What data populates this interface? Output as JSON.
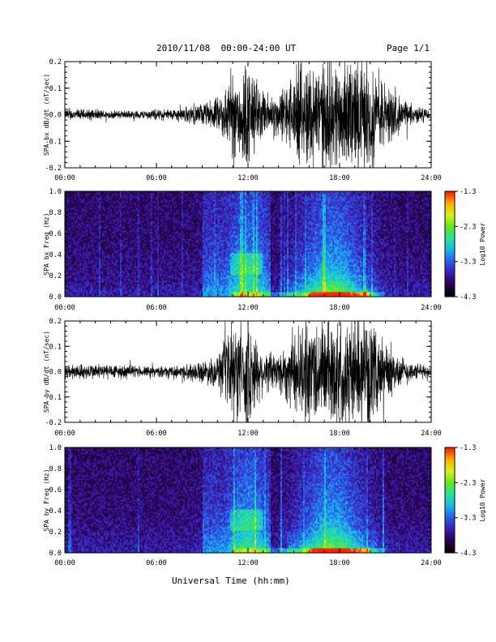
{
  "header": {
    "title": "2010/11/08  00:00-24:00 UT",
    "page": "Page 1/1"
  },
  "footer": {
    "xlabel": "Universal Time (hh:mm)"
  },
  "colors": {
    "trace": "#000000",
    "colormap": [
      "#000000",
      "#2a0050",
      "#3a1fb0",
      "#2b5ce8",
      "#1bb6f0",
      "#25e0a0",
      "#5ee820",
      "#d8f020",
      "#ffb000",
      "#ff2000"
    ]
  },
  "chart_data": [
    {
      "type": "line",
      "ylabel": "SPA bx dB/dt (nT/sec)",
      "x_ticks": [
        "00:00",
        "06:00",
        "12:00",
        "18:00",
        "24:00"
      ],
      "xlim": [
        "00:00",
        "24:00"
      ],
      "ylim": [
        -0.2,
        0.2
      ],
      "y_ticks": [
        "0.2",
        "0.1",
        "0.0",
        "-0.1",
        "-0.2"
      ],
      "series": [
        {
          "hours": [
            0,
            1,
            2,
            3,
            4,
            5,
            6,
            7,
            8,
            9,
            10,
            11,
            12,
            13,
            14,
            15,
            16,
            17,
            18,
            19,
            20,
            21,
            22,
            23,
            24
          ],
          "amplitude": [
            0.02,
            0.02,
            0.02,
            0.015,
            0.015,
            0.015,
            0.02,
            0.02,
            0.03,
            0.04,
            0.06,
            0.15,
            0.2,
            0.08,
            0.08,
            0.15,
            0.2,
            0.2,
            0.2,
            0.2,
            0.18,
            0.12,
            0.06,
            0.03,
            0.02
          ]
        }
      ]
    },
    {
      "type": "heatmap",
      "ylabel": "SPA bx Freq (Hz)",
      "x_ticks": [
        "00:00",
        "06:00",
        "12:00",
        "18:00",
        "24:00"
      ],
      "xlim": [
        "00:00",
        "24:00"
      ],
      "ylim": [
        0.0,
        1.0
      ],
      "y_ticks": [
        "1.0",
        "0.8",
        "0.6",
        "0.4",
        "0.2",
        "0.0"
      ],
      "colorbar": {
        "label": "Log10 Power",
        "min": -4.3,
        "max": -1.3,
        "ticks": [
          "-1.3",
          "-2.3",
          "-3.3",
          "-4.3"
        ]
      }
    },
    {
      "type": "line",
      "ylabel": "SPA by dB/dt (nT/sec)",
      "x_ticks": [
        "00:00",
        "06:00",
        "12:00",
        "18:00",
        "24:00"
      ],
      "xlim": [
        "00:00",
        "24:00"
      ],
      "ylim": [
        -0.2,
        0.2
      ],
      "y_ticks": [
        "0.2",
        "0.1",
        "0.0",
        "-0.1",
        "-0.2"
      ],
      "series": [
        {
          "hours": [
            0,
            1,
            2,
            3,
            4,
            5,
            6,
            7,
            8,
            9,
            10,
            11,
            12,
            13,
            14,
            15,
            16,
            17,
            18,
            19,
            20,
            21,
            22,
            23,
            24
          ],
          "amplitude": [
            0.03,
            0.03,
            0.03,
            0.03,
            0.025,
            0.02,
            0.02,
            0.02,
            0.03,
            0.04,
            0.06,
            0.18,
            0.2,
            0.08,
            0.08,
            0.15,
            0.2,
            0.2,
            0.2,
            0.2,
            0.18,
            0.12,
            0.06,
            0.03,
            0.02
          ]
        }
      ]
    },
    {
      "type": "heatmap",
      "ylabel": "SPA by Freq (Hz)",
      "x_ticks": [
        "00:00",
        "06:00",
        "12:00",
        "18:00",
        "24:00"
      ],
      "xlim": [
        "00:00",
        "24:00"
      ],
      "ylim": [
        0.0,
        1.0
      ],
      "y_ticks": [
        "1.0",
        "0.8",
        "0.6",
        "0.4",
        "0.2",
        "0.0"
      ],
      "colorbar": {
        "label": "Log10 Power",
        "min": -4.3,
        "max": -1.3,
        "ticks": [
          "-1.3",
          "-2.3",
          "-3.3",
          "-4.3"
        ]
      }
    }
  ]
}
